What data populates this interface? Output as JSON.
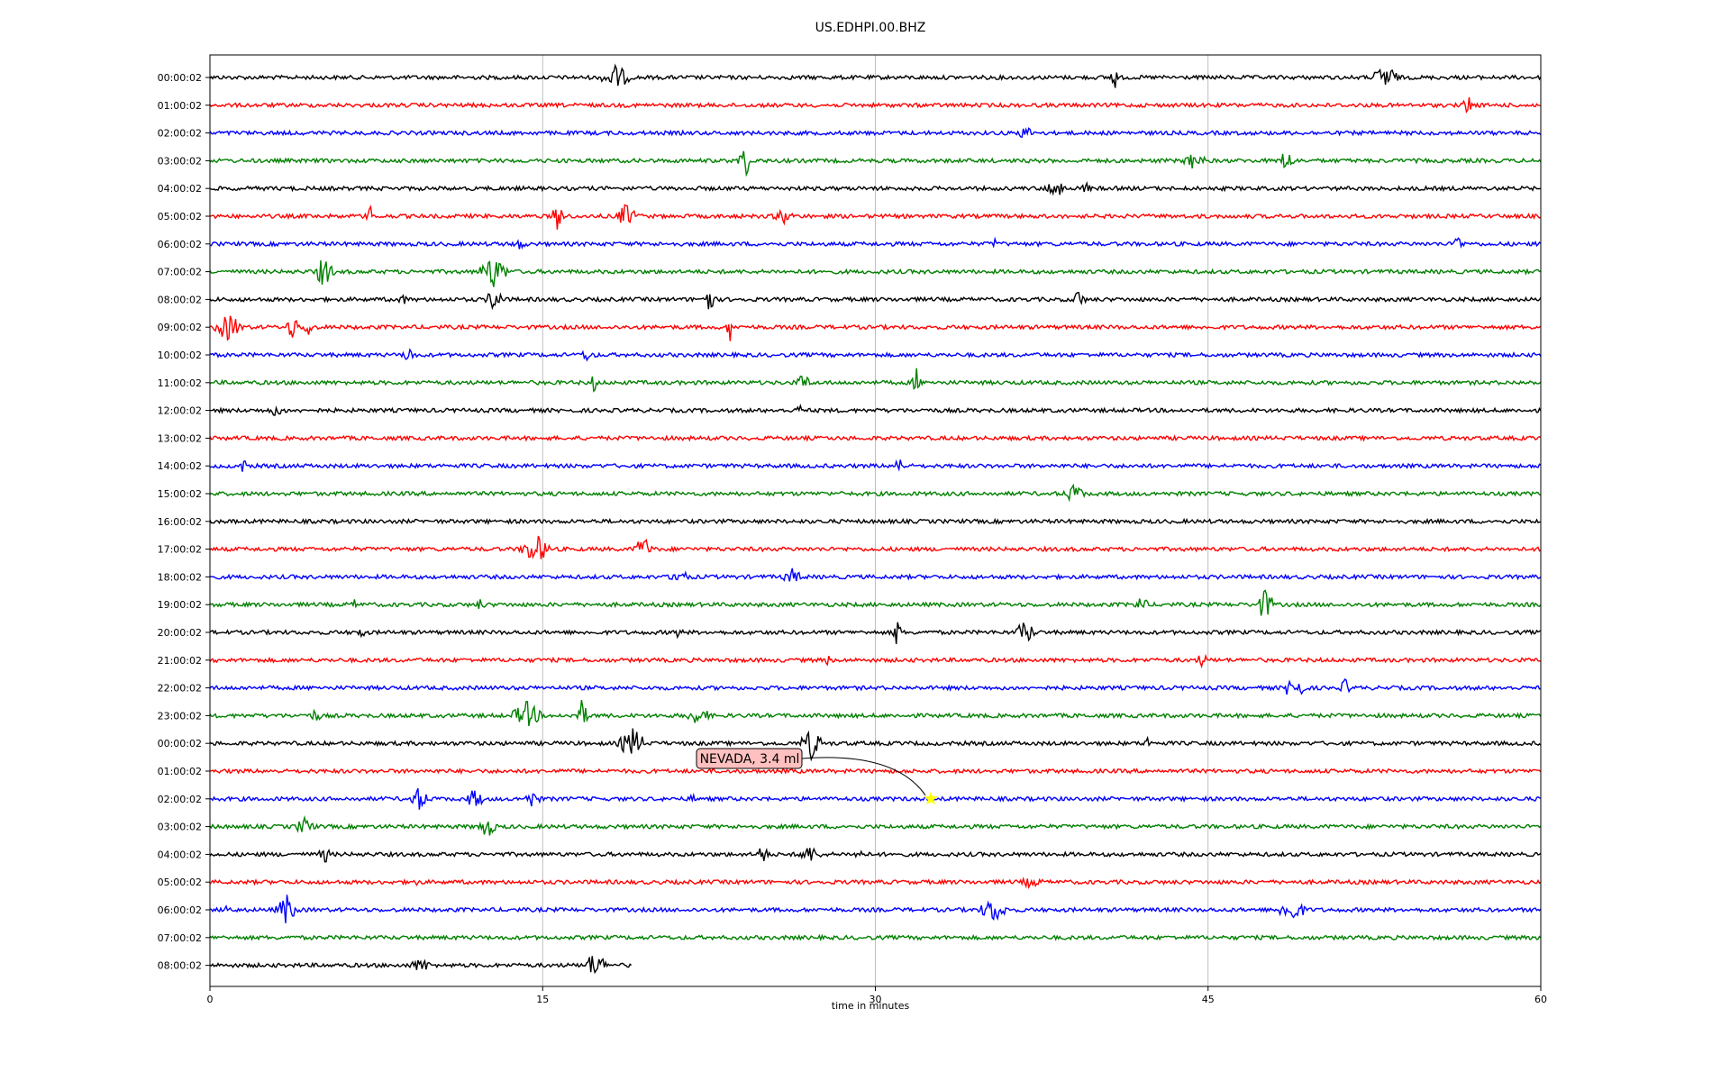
{
  "chart_data": {
    "type": "line",
    "title": "US.EDHPI.00.BHZ",
    "xlabel": "time in minutes",
    "ylabel": "",
    "xlim": [
      0,
      60
    ],
    "xticks": [
      0,
      15,
      30,
      45,
      60
    ],
    "grid": "vertical",
    "colors": [
      "#000000",
      "#ff0000",
      "#0000ff",
      "#008000"
    ],
    "rows": [
      {
        "label": "00:00:02",
        "duration_min": 60
      },
      {
        "label": "01:00:02",
        "duration_min": 60
      },
      {
        "label": "02:00:02",
        "duration_min": 60
      },
      {
        "label": "03:00:02",
        "duration_min": 60
      },
      {
        "label": "04:00:02",
        "duration_min": 60
      },
      {
        "label": "05:00:02",
        "duration_min": 60
      },
      {
        "label": "06:00:02",
        "duration_min": 60
      },
      {
        "label": "07:00:02",
        "duration_min": 60
      },
      {
        "label": "08:00:02",
        "duration_min": 60
      },
      {
        "label": "09:00:02",
        "duration_min": 60
      },
      {
        "label": "10:00:02",
        "duration_min": 60
      },
      {
        "label": "11:00:02",
        "duration_min": 60
      },
      {
        "label": "12:00:02",
        "duration_min": 60
      },
      {
        "label": "13:00:02",
        "duration_min": 60
      },
      {
        "label": "14:00:02",
        "duration_min": 60
      },
      {
        "label": "15:00:02",
        "duration_min": 60
      },
      {
        "label": "16:00:02",
        "duration_min": 60
      },
      {
        "label": "17:00:02",
        "duration_min": 60
      },
      {
        "label": "18:00:02",
        "duration_min": 60
      },
      {
        "label": "19:00:02",
        "duration_min": 60
      },
      {
        "label": "20:00:02",
        "duration_min": 60
      },
      {
        "label": "21:00:02",
        "duration_min": 60
      },
      {
        "label": "22:00:02",
        "duration_min": 60
      },
      {
        "label": "23:00:02",
        "duration_min": 60
      },
      {
        "label": "00:00:02",
        "duration_min": 60
      },
      {
        "label": "01:00:02",
        "duration_min": 60
      },
      {
        "label": "02:00:02",
        "duration_min": 60
      },
      {
        "label": "03:00:02",
        "duration_min": 60
      },
      {
        "label": "04:00:02",
        "duration_min": 60
      },
      {
        "label": "05:00:02",
        "duration_min": 60
      },
      {
        "label": "06:00:02",
        "duration_min": 60
      },
      {
        "label": "07:00:02",
        "duration_min": 60
      },
      {
        "label": "08:00:02",
        "duration_min": 19
      }
    ],
    "annotations": [
      {
        "text": "NEVADA, 3.4 ml",
        "row": 26,
        "x_min": 32.5,
        "marker": "star",
        "marker_color": "#ffff00"
      }
    ]
  }
}
